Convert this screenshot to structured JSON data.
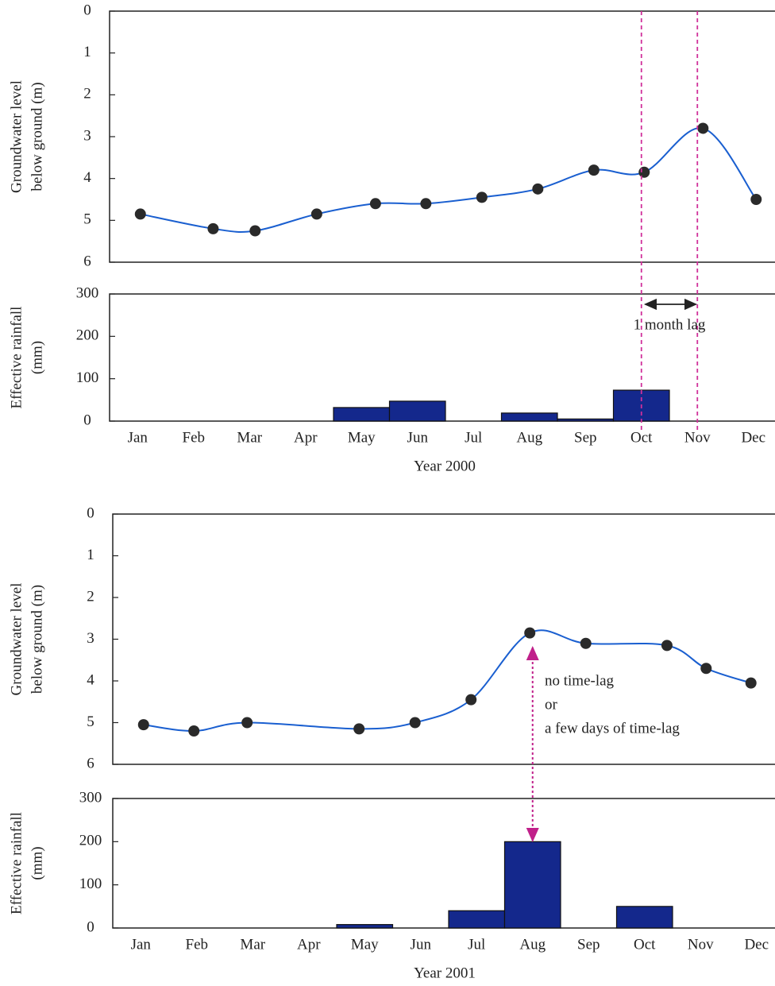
{
  "chart_data": [
    {
      "type": "line",
      "y_label": [
        "Groundwater level",
        "below ground (m)"
      ],
      "x": [
        1.05,
        2.35,
        3.1,
        4.2,
        5.25,
        6.15,
        7.15,
        8.15,
        9.15,
        10.05,
        11.1,
        12.05
      ],
      "values": [
        4.85,
        5.2,
        5.25,
        4.85,
        4.6,
        4.6,
        4.45,
        4.25,
        3.8,
        3.85,
        2.8,
        4.5
      ],
      "ylim": [
        0,
        6
      ],
      "yticks": [
        0,
        1,
        2,
        3,
        4,
        5,
        6
      ],
      "inverted": true,
      "color": "#1a5fd0",
      "marker_color": "#2a2a2a"
    },
    {
      "type": "bar",
      "y_label": [
        "Effective rainfall",
        "(mm)"
      ],
      "x_label": "Year 2000",
      "categories": [
        "Jan",
        "Feb",
        "Mar",
        "Apr",
        "May",
        "Jun",
        "Jul",
        "Aug",
        "Sep",
        "Oct",
        "Nov",
        "Dec"
      ],
      "values": [
        0,
        0,
        0,
        0,
        32,
        47,
        0,
        19,
        5,
        73,
        0,
        0
      ],
      "ylim": [
        0,
        300
      ],
      "yticks": [
        0,
        100,
        200,
        300
      ],
      "color": "#14288c",
      "annotations": [
        "1 month lag"
      ]
    },
    {
      "type": "line",
      "y_label": [
        "Groundwater level",
        "below ground (m)"
      ],
      "x": [
        1.05,
        1.95,
        2.9,
        4.9,
        5.9,
        6.9,
        7.95,
        8.95,
        10.4,
        11.1,
        11.9
      ],
      "values": [
        5.05,
        5.2,
        5.0,
        5.15,
        5.0,
        4.45,
        2.85,
        3.1,
        3.15,
        3.7,
        4.05
      ],
      "ylim": [
        0,
        6
      ],
      "yticks": [
        0,
        1,
        2,
        3,
        4,
        5,
        6
      ],
      "inverted": true,
      "color": "#1a5fd0",
      "marker_color": "#2a2a2a",
      "annotations": [
        "no time-lag",
        "or",
        "a few days of time-lag"
      ]
    },
    {
      "type": "bar",
      "y_label": [
        "Effective rainfall",
        "(mm)"
      ],
      "x_label": "Year 2001",
      "categories": [
        "Jan",
        "Feb",
        "Mar",
        "Apr",
        "May",
        "Jun",
        "Jul",
        "Aug",
        "Sep",
        "Oct",
        "Nov",
        "Dec"
      ],
      "values": [
        0,
        0,
        0,
        0,
        8,
        0,
        40,
        200,
        0,
        50,
        0,
        0
      ],
      "ylim": [
        0,
        300
      ],
      "yticks": [
        0,
        100,
        200,
        300
      ],
      "color": "#14288c"
    }
  ]
}
